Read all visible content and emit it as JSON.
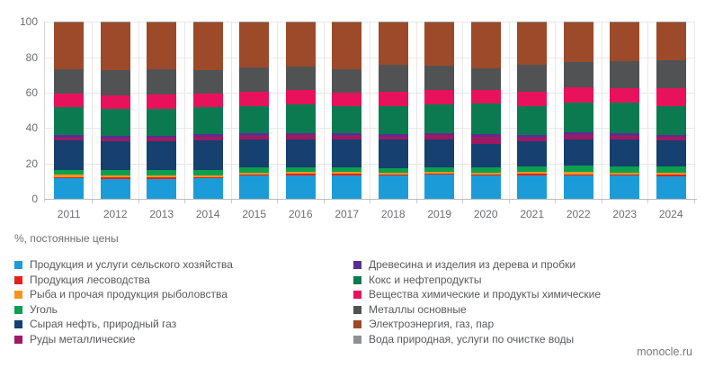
{
  "caption": "%, постоянные цены",
  "watermark": "monocle.ru",
  "chart_data": {
    "type": "bar",
    "variant": "stacked-100",
    "title": "",
    "xlabel": "",
    "ylabel": "%, постоянные цены",
    "ylim": [
      0,
      100
    ],
    "y_ticks": [
      "0",
      "20",
      "40",
      "60",
      "80",
      "100"
    ],
    "grid": true,
    "legend_position": "bottom-two-columns",
    "categories": [
      "2011",
      "2012",
      "2013",
      "2014",
      "2015",
      "2016",
      "2017",
      "2018",
      "2019",
      "2020",
      "2021",
      "2022",
      "2023",
      "2024"
    ],
    "series": [
      {
        "name": "Продукция и услуги сельского хозяйства",
        "color": "#1b9cd8",
        "values": [
          11.5,
          11.3,
          11.4,
          11.5,
          13.0,
          13.3,
          13.4,
          13.1,
          13.6,
          13.0,
          13.3,
          13.2,
          13.0,
          12.8
        ]
      },
      {
        "name": "Продукция лесоводства",
        "color": "#e2231a",
        "values": [
          0.7,
          0.7,
          0.7,
          0.7,
          0.7,
          0.7,
          0.7,
          0.6,
          0.6,
          0.6,
          0.7,
          0.7,
          0.7,
          0.7
        ]
      },
      {
        "name": "Рыба и прочая продукция рыболовства",
        "color": "#f7941e",
        "values": [
          1.3,
          1.2,
          1.2,
          1.2,
          1.2,
          1.1,
          1.1,
          1.1,
          1.1,
          1.1,
          1.2,
          1.2,
          1.2,
          1.2
        ]
      },
      {
        "name": "Уголь",
        "color": "#0aa04f",
        "values": [
          3.0,
          3.0,
          2.9,
          2.8,
          2.7,
          2.6,
          2.5,
          2.6,
          2.6,
          2.9,
          3.0,
          3.6,
          3.6,
          3.5
        ]
      },
      {
        "name": "Сырая нефть, природный газ",
        "color": "#15406f",
        "values": [
          16.5,
          16.2,
          16.2,
          16.6,
          16.0,
          16.1,
          15.9,
          16.0,
          15.8,
          13.3,
          14.3,
          14.7,
          14.9,
          14.9
        ]
      },
      {
        "name": "Руды металлические",
        "color": "#a01a62",
        "values": [
          1.8,
          1.9,
          2.0,
          2.2,
          2.0,
          2.1,
          1.9,
          1.9,
          2.2,
          4.1,
          2.2,
          2.6,
          2.4,
          2.0
        ]
      },
      {
        "name": "Древесина и изделия из дерева и пробки",
        "color": "#5c2d91",
        "values": [
          1.2,
          1.2,
          1.4,
          1.4,
          1.4,
          1.4,
          1.4,
          1.4,
          1.4,
          1.5,
          1.4,
          1.6,
          1.5,
          1.2
        ]
      },
      {
        "name": "Кокс и нефтепродукты",
        "color": "#0c7a50",
        "values": [
          15.8,
          15.3,
          15.2,
          15.2,
          15.2,
          16.0,
          15.5,
          15.9,
          15.9,
          17.2,
          16.1,
          17.0,
          17.3,
          16.2
        ]
      },
      {
        "name": "Вещества химические и продукты химические",
        "color": "#e8125c",
        "values": [
          7.8,
          7.7,
          7.9,
          8.0,
          8.2,
          8.0,
          7.8,
          8.1,
          8.4,
          8.0,
          8.5,
          8.5,
          8.1,
          10.2
        ]
      },
      {
        "name": "Металлы основные",
        "color": "#515254",
        "values": [
          13.6,
          14.4,
          14.1,
          13.0,
          13.9,
          13.2,
          13.2,
          14.9,
          13.6,
          11.9,
          14.8,
          14.4,
          15.1,
          15.6
        ]
      },
      {
        "name": "Электроэнергия, газ, пар",
        "color": "#9c4a29",
        "values": [
          26.5,
          26.8,
          26.7,
          27.1,
          25.4,
          25.2,
          26.3,
          24.1,
          24.5,
          26.1,
          24.2,
          22.2,
          21.9,
          21.4
        ]
      },
      {
        "name": "Вода природная, услуги по очистке воды",
        "color": "#8e9093",
        "values": [
          0.3,
          0.3,
          0.3,
          0.3,
          0.3,
          0.3,
          0.3,
          0.3,
          0.3,
          0.3,
          0.3,
          0.3,
          0.3,
          0.3
        ]
      }
    ]
  }
}
